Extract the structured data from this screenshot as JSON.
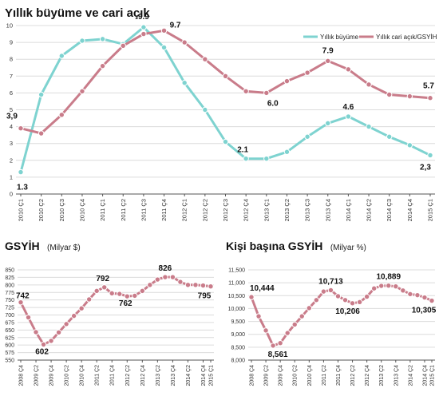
{
  "colors": {
    "teal": "#7ed3d0",
    "pink": "#c97c8a",
    "text": "#111111",
    "grid": "#dcdcdc"
  },
  "chart_data": [
    {
      "type": "line",
      "title": "Yıllık büyüme ve cari açık",
      "categories": [
        "2010 Ç1",
        "2010 Ç2",
        "2010 Ç3",
        "2010 Ç4",
        "2011 Ç1",
        "2011 Ç2",
        "2011 Ç3",
        "2011 Ç4",
        "2012 Ç1",
        "2012 Ç2",
        "2012 Ç3",
        "2012 Ç4",
        "2013 Ç1",
        "2013 Ç2",
        "2013 Ç3",
        "2013 Ç4",
        "2014 Ç1",
        "2014 Ç2",
        "2014 Ç3",
        "2014 Ç4",
        "2015 Ç1"
      ],
      "ylim": [
        0,
        10
      ],
      "yticks": [
        0,
        1,
        2,
        3,
        4,
        5,
        6,
        7,
        8,
        9,
        10
      ],
      "grid": true,
      "legend": "top-right",
      "series": [
        {
          "name": "Yıllık büyüme",
          "color": "#7ed3d0",
          "values": [
            1.3,
            5.9,
            8.2,
            9.1,
            9.2,
            8.9,
            9.9,
            8.7,
            6.6,
            5.0,
            3.1,
            2.1,
            2.1,
            2.5,
            3.4,
            4.2,
            4.6,
            4.0,
            3.4,
            2.9,
            2.3
          ]
        },
        {
          "name": "Yıllık cari açık/GSYİH (%)",
          "color": "#c97c8a",
          "values": [
            3.9,
            3.6,
            4.7,
            6.1,
            7.6,
            8.8,
            9.5,
            9.7,
            9.0,
            8.0,
            7.0,
            6.1,
            6.0,
            6.7,
            7.2,
            7.9,
            7.4,
            6.5,
            5.9,
            5.8,
            5.7
          ]
        }
      ],
      "labels": [
        {
          "series": 0,
          "index": 0,
          "text": "1.3"
        },
        {
          "series": 1,
          "index": 0,
          "text": "3,9"
        },
        {
          "series": 0,
          "index": 6,
          "text": "9.9"
        },
        {
          "series": 1,
          "index": 7,
          "text": "9.7"
        },
        {
          "series": 0,
          "index": 11,
          "text": "2.1"
        },
        {
          "series": 1,
          "index": 12,
          "text": "6.0"
        },
        {
          "series": 1,
          "index": 15,
          "text": "7.9"
        },
        {
          "series": 0,
          "index": 16,
          "text": "4.6"
        },
        {
          "series": 0,
          "index": 20,
          "text": "2,3"
        },
        {
          "series": 1,
          "index": 20,
          "text": "5.7"
        }
      ]
    },
    {
      "type": "line",
      "title": "GSYİH",
      "unit": "(Milyar $)",
      "categories": [
        "2008 Ç4",
        "2009 Ç2",
        "2009 Ç4",
        "2010 Ç2",
        "2010 Ç4",
        "2011 Ç2",
        "2011 Ç4",
        "2012 Ç2",
        "2012 Ç4",
        "2013 Ç2",
        "2013 Ç4",
        "2014 Ç2",
        "2014 Ç4",
        "2015 Ç1"
      ],
      "x": [
        0,
        2,
        4,
        6,
        8,
        10,
        12,
        14,
        16,
        18,
        20,
        22,
        24,
        25
      ],
      "x_count": 26,
      "ylim": [
        550,
        850
      ],
      "yticks": [
        550,
        575,
        600,
        625,
        650,
        675,
        700,
        725,
        750,
        775,
        800,
        825,
        850
      ],
      "grid": true,
      "series": [
        {
          "name": "",
          "color": "#c97c8a",
          "x": [
            0,
            1,
            2,
            3,
            4,
            5,
            6,
            7,
            8,
            9,
            10,
            11,
            12,
            13,
            14,
            15,
            16,
            17,
            18,
            19,
            20,
            21,
            22,
            23,
            24,
            25
          ],
          "values": [
            742,
            692,
            643,
            602,
            614,
            642,
            670,
            697,
            722,
            752,
            780,
            792,
            772,
            770,
            762,
            764,
            780,
            800,
            818,
            826,
            826,
            810,
            800,
            800,
            798,
            795
          ]
        }
      ],
      "labels": [
        {
          "series": 0,
          "index": 0,
          "text": "742"
        },
        {
          "series": 0,
          "index": 3,
          "text": "602"
        },
        {
          "series": 0,
          "index": 11,
          "text": "792"
        },
        {
          "series": 0,
          "index": 14,
          "text": "762"
        },
        {
          "series": 0,
          "index": 19,
          "text": "826"
        },
        {
          "series": 0,
          "index": 25,
          "text": "795"
        }
      ]
    },
    {
      "type": "line",
      "title": "Kişi başına GSYİH",
      "unit": "(Milyar %)",
      "categories": [
        "2008 Ç4",
        "2009 Ç2",
        "2009 Ç4",
        "2010 Ç2",
        "2010 Ç4",
        "2011 Ç2",
        "2011 Ç4",
        "2012 Ç2",
        "2012 Ç4",
        "2013 Ç2",
        "2013 Ç4",
        "2014 Ç2",
        "2014 Ç4",
        "2015 Ç1"
      ],
      "x": [
        0,
        2,
        4,
        6,
        8,
        10,
        12,
        14,
        16,
        18,
        20,
        22,
        24,
        25
      ],
      "x_count": 26,
      "ylim": [
        8000,
        11500
      ],
      "yticks": [
        8000,
        8500,
        9000,
        9500,
        10000,
        10500,
        11000,
        11500
      ],
      "ytick_labels": [
        "8,000",
        "8,500",
        "9,000",
        "9,500",
        "10,000",
        "10,500",
        "11,000",
        "11,500"
      ],
      "grid": true,
      "series": [
        {
          "name": "",
          "color": "#c97c8a",
          "x": [
            0,
            1,
            2,
            3,
            4,
            5,
            6,
            7,
            8,
            9,
            10,
            11,
            12,
            13,
            14,
            15,
            16,
            17,
            18,
            19,
            20,
            21,
            22,
            23,
            24,
            25
          ],
          "values": [
            10444,
            9700,
            9150,
            8561,
            8660,
            9050,
            9380,
            9700,
            10020,
            10330,
            10660,
            10713,
            10480,
            10330,
            10206,
            10250,
            10460,
            10780,
            10880,
            10889,
            10860,
            10700,
            10560,
            10520,
            10430,
            10305
          ]
        }
      ],
      "labels": [
        {
          "series": 0,
          "index": 0,
          "text": "10,444"
        },
        {
          "series": 0,
          "index": 3,
          "text": "8,561"
        },
        {
          "series": 0,
          "index": 11,
          "text": "10,713"
        },
        {
          "series": 0,
          "index": 14,
          "text": "10,206"
        },
        {
          "series": 0,
          "index": 19,
          "text": "10,889"
        },
        {
          "series": 0,
          "index": 25,
          "text": "10,305"
        }
      ]
    }
  ]
}
